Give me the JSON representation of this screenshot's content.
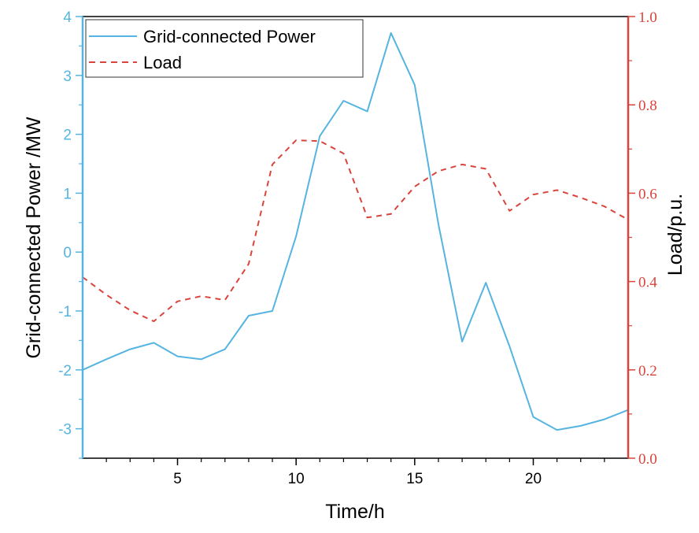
{
  "colors": {
    "grid_power": "#56b4e0",
    "load": "#d9443c",
    "frame": "#000000"
  },
  "chart_data": {
    "type": "line",
    "xlabel": "Time/h",
    "ylabel_left": "Grid-connected Power /MW",
    "ylabel_right": "Load/p.u.",
    "xlim": [
      1,
      24
    ],
    "ylim_left": [
      -3.5,
      4
    ],
    "ylim_right": [
      0,
      1
    ],
    "x_ticks": [
      5,
      10,
      15,
      20
    ],
    "x_tick_labels": [
      "5",
      "10",
      "15",
      "20"
    ],
    "y_left_ticks": [
      -3,
      -2,
      -1,
      0,
      1,
      2,
      3,
      4
    ],
    "y_left_tick_labels": [
      "-3",
      "-2",
      "-1",
      "0",
      "1",
      "2",
      "3",
      "4"
    ],
    "y_right_ticks": [
      0,
      0.2,
      0.4,
      0.6,
      0.8,
      1.0
    ],
    "y_right_tick_labels": [
      "0.0",
      "0.2",
      "0.4",
      "0.6",
      "0.8",
      "1.0"
    ],
    "legend_position": "top-left",
    "x": [
      1,
      2,
      3,
      4,
      5,
      6,
      7,
      8,
      9,
      10,
      11,
      12,
      13,
      14,
      15,
      16,
      17,
      18,
      19,
      20,
      21,
      22,
      23,
      24
    ],
    "series": [
      {
        "name": "Grid-connected Power",
        "axis": "left",
        "style": "solid",
        "values": [
          -2.0,
          -1.82,
          -1.65,
          -1.54,
          -1.77,
          -1.82,
          -1.65,
          -1.08,
          -1.0,
          0.27,
          1.97,
          2.57,
          2.39,
          3.72,
          2.84,
          0.47,
          -1.52,
          -0.52,
          -1.6,
          -2.8,
          -3.02,
          -2.95,
          -2.84,
          -2.68
        ]
      },
      {
        "name": "Load",
        "axis": "right",
        "style": "dashed",
        "values": [
          0.41,
          0.37,
          0.335,
          0.31,
          0.355,
          0.367,
          0.358,
          0.44,
          0.665,
          0.72,
          0.718,
          0.69,
          0.545,
          0.553,
          0.615,
          0.65,
          0.665,
          0.655,
          0.56,
          0.597,
          0.607,
          0.59,
          0.57,
          0.54
        ]
      }
    ]
  }
}
